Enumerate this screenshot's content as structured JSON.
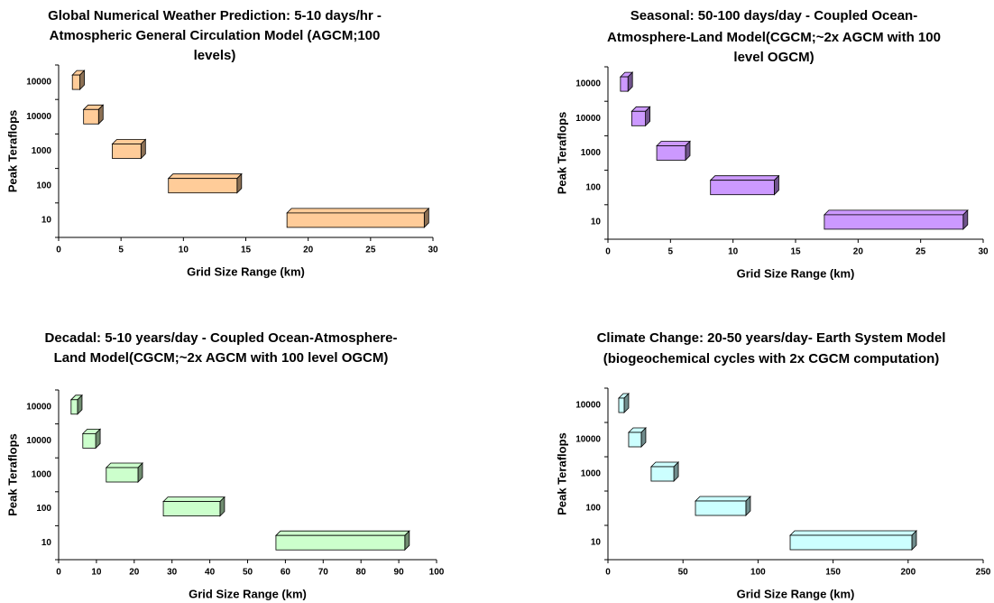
{
  "chart_data": [
    {
      "type": "range-bar",
      "title": [
        "Global Numerical Weather Prediction: 5-10 days/hr -",
        "Atmospheric General Circulation Model (AGCM;100",
        "levels)"
      ],
      "x_label": "Grid Size Range (km)",
      "y_label": "Peak Teraflops",
      "categories": [
        "10000",
        "10000",
        "1000",
        "100",
        "10"
      ],
      "values": [
        [
          1.1,
          1.7
        ],
        [
          2.0,
          3.2
        ],
        [
          4.3,
          6.6
        ],
        [
          8.8,
          14.3
        ],
        [
          18.3,
          29.3
        ]
      ],
      "color": "#ffcc99",
      "xlim": [
        0,
        30
      ],
      "xticks": [
        0,
        5,
        10,
        15,
        20,
        25,
        30
      ]
    },
    {
      "type": "range-bar",
      "title": [
        "Seasonal: 50-100 days/day - Coupled Ocean-",
        "Atmosphere-Land Model(CGCM;~2x AGCM with 100",
        "level OGCM)"
      ],
      "x_label": "Grid Size Range (km)",
      "y_label": "Peak Teraflops",
      "categories": [
        "10000",
        "10000",
        "1000",
        "100",
        "10"
      ],
      "values": [
        [
          1.0,
          1.6
        ],
        [
          1.9,
          3.0
        ],
        [
          3.9,
          6.2
        ],
        [
          8.2,
          13.3
        ],
        [
          17.3,
          28.4
        ]
      ],
      "color": "#cc99ff",
      "xlim": [
        0,
        30
      ],
      "xticks": [
        0,
        5,
        10,
        15,
        20,
        25,
        30
      ]
    },
    {
      "type": "range-bar",
      "title": [
        "Decadal: 5-10 years/day -  Coupled Ocean-Atmosphere-",
        "Land Model(CGCM;~2x AGCM with 100 level OGCM)"
      ],
      "x_label": "Grid Size Range (km)",
      "y_label": "Peak Teraflops",
      "categories": [
        "10000",
        "10000",
        "1000",
        "100",
        "10"
      ],
      "values": [
        [
          3.3,
          5.0
        ],
        [
          6.4,
          9.8
        ],
        [
          12.6,
          21.0
        ],
        [
          27.7,
          42.7
        ],
        [
          57.5,
          91.6
        ]
      ],
      "color": "#ccffcc",
      "xlim": [
        0,
        100
      ],
      "xticks": [
        0,
        10,
        20,
        30,
        40,
        50,
        60,
        70,
        80,
        90,
        100
      ]
    },
    {
      "type": "range-bar",
      "title": [
        "Climate Change: 20-50 years/day- Earth System Model",
        "(biogeochemical cycles with 2x CGCM computation)"
      ],
      "x_label": "Grid Size Range (km)",
      "y_label": "Peak Teraflops",
      "categories": [
        "10000",
        "10000",
        "1000",
        "100",
        "10"
      ],
      "values": [
        [
          7.2,
          10.8
        ],
        [
          13.8,
          22.2
        ],
        [
          28.8,
          43.9
        ],
        [
          58.3,
          91.9
        ],
        [
          121.4,
          202.5
        ]
      ],
      "color": "#ccffff",
      "xlim": [
        0,
        250
      ],
      "xticks": [
        0,
        50,
        100,
        150,
        200,
        250
      ]
    }
  ]
}
